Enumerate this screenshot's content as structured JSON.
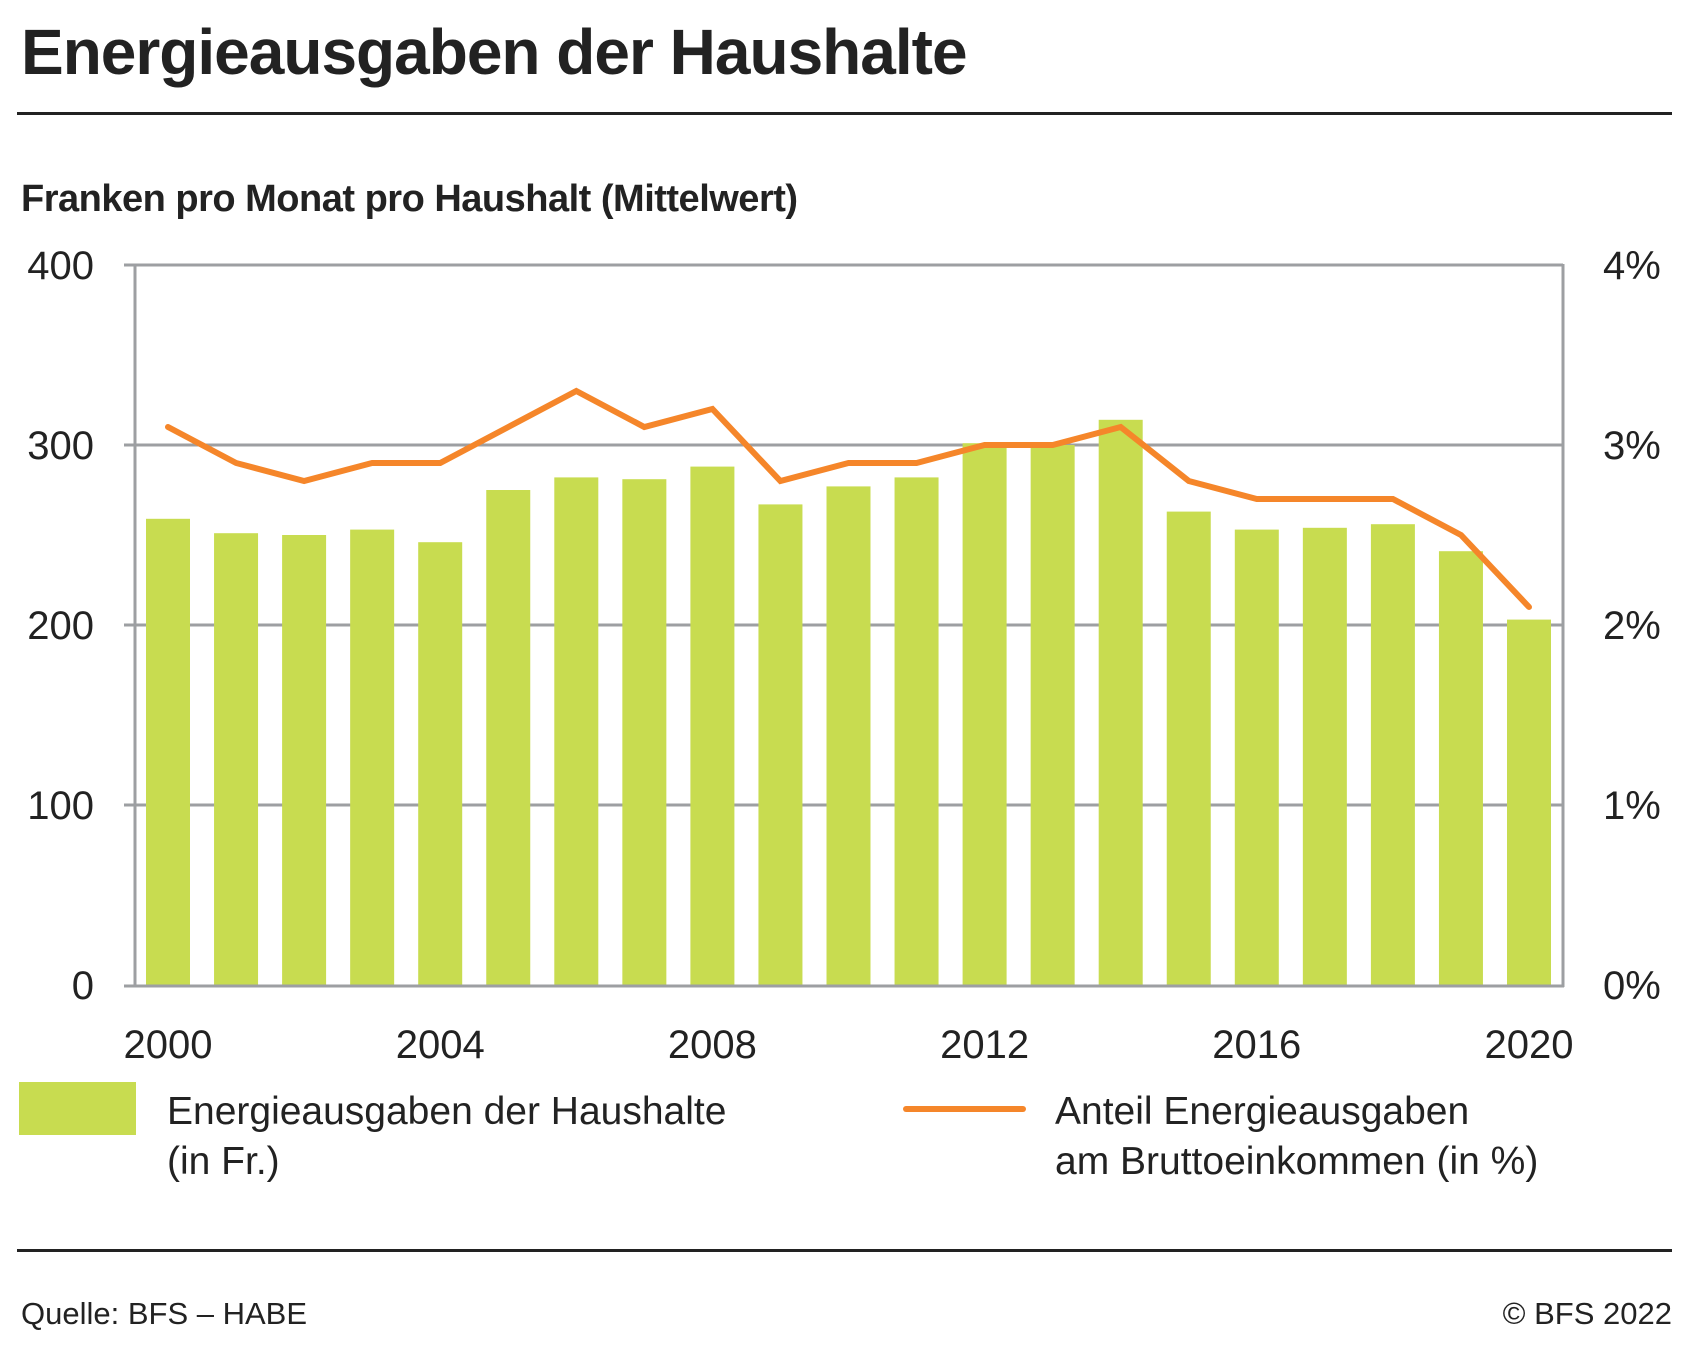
{
  "header": {
    "title": "Energieausgaben der Haushalte",
    "subtitle": "Franken pro Monat pro Haushalt (Mittelwert)"
  },
  "colors": {
    "bars": "#C8DC50",
    "line": "#F5862A",
    "grid": "#9D9FA2",
    "text": "#222222"
  },
  "chart_data": {
    "type": "bar",
    "title": "Energieausgaben der Haushalte",
    "subtitle": "Franken pro Monat pro Haushalt (Mittelwert)",
    "xlabel": "",
    "ylabel": "Franken pro Monat pro Haushalt (Mittelwert)",
    "categories": [
      "2000",
      "2001",
      "2002",
      "2003",
      "2004",
      "2005",
      "2006",
      "2007",
      "2008",
      "2009",
      "2010",
      "2011",
      "2012",
      "2013",
      "2014",
      "2015",
      "2016",
      "2017",
      "2018",
      "2019",
      "2020"
    ],
    "x_tick_labels": [
      "2000",
      "2004",
      "2008",
      "2012",
      "2016",
      "2020"
    ],
    "ylim": [
      0,
      400
    ],
    "y_ticks": [
      0,
      100,
      200,
      300,
      400
    ],
    "y_tick_labels": [
      "0",
      "100",
      "200",
      "300",
      "400"
    ],
    "y2lim": [
      0,
      4
    ],
    "y2_ticks": [
      0,
      1,
      2,
      3,
      4
    ],
    "y2_tick_labels": [
      "0%",
      "1%",
      "2%",
      "3%",
      "4%"
    ],
    "grid": true,
    "legend_position": "bottom",
    "series": [
      {
        "name": "Energieausgaben der Haushalte (in Fr.)",
        "type": "bar",
        "axis": "left",
        "values": [
          259,
          251,
          250,
          253,
          246,
          275,
          282,
          281,
          288,
          267,
          277,
          282,
          301,
          300,
          314,
          263,
          253,
          254,
          256,
          241,
          203
        ]
      },
      {
        "name": "Anteil Energieausgaben am Bruttoeinkommen (in %)",
        "type": "line",
        "axis": "right",
        "values": [
          3.1,
          2.9,
          2.8,
          2.9,
          2.9,
          3.1,
          3.3,
          3.1,
          3.2,
          2.8,
          2.9,
          2.9,
          3.0,
          3.0,
          3.1,
          2.8,
          2.7,
          2.7,
          2.7,
          2.5,
          2.1
        ]
      }
    ]
  },
  "legend": {
    "bars_line1": "Energieausgaben der Haushalte",
    "bars_line2": "(in Fr.)",
    "line_line1": "Anteil Energieausgaben",
    "line_line2": "am Bruttoeinkommen (in %)"
  },
  "footer": {
    "source": "Quelle: BFS – HABE",
    "copyright": "© BFS 2022"
  }
}
